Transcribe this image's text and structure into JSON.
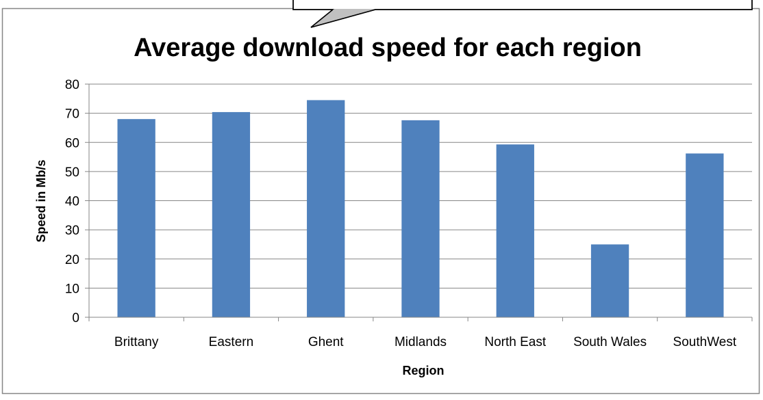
{
  "colors": {
    "bar": "#4f81bd",
    "grid": "#868686",
    "frame": "#868686",
    "callout_fill": "#c0c0c0",
    "text": "#000000"
  },
  "chart_data": {
    "type": "bar",
    "title": "Average download speed for each region",
    "xlabel": "Region",
    "ylabel": "Speed in Mb/s",
    "categories": [
      "Brittany",
      "Eastern",
      "Ghent",
      "Midlands",
      "North East",
      "South Wales",
      "SouthWest"
    ],
    "values": [
      68,
      70.4,
      74.5,
      67.6,
      59.3,
      25,
      56.2
    ],
    "ylim": [
      0,
      80
    ],
    "yticks": [
      0,
      10,
      20,
      30,
      40,
      50,
      60,
      70,
      80
    ],
    "grid": true,
    "legend": "none"
  }
}
